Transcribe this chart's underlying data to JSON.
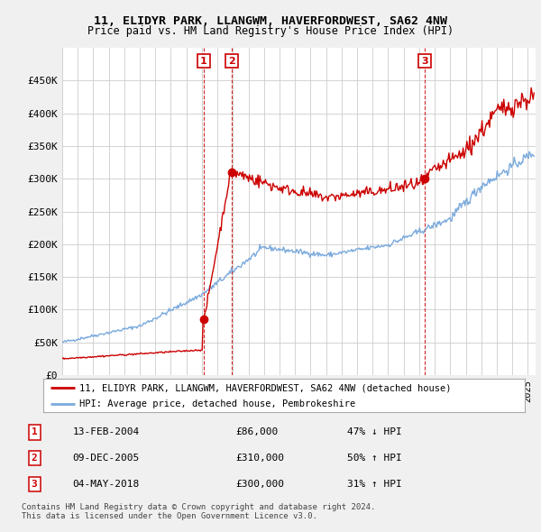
{
  "title": "11, ELIDYR PARK, LLANGWM, HAVERFORDWEST, SA62 4NW",
  "subtitle": "Price paid vs. HM Land Registry's House Price Index (HPI)",
  "xlim_start": 1995.0,
  "xlim_end": 2025.5,
  "ylim": [
    0,
    500000
  ],
  "yticks": [
    0,
    50000,
    100000,
    150000,
    200000,
    250000,
    300000,
    350000,
    400000,
    450000
  ],
  "ytick_labels": [
    "£0",
    "£50K",
    "£100K",
    "£150K",
    "£200K",
    "£250K",
    "£300K",
    "£350K",
    "£400K",
    "£450K"
  ],
  "sale_color": "#cc0000",
  "hpi_color": "#7aaadd",
  "transactions": [
    {
      "num": 1,
      "date_label": "13-FEB-2004",
      "x": 2004.12,
      "price": 86000,
      "pct": "47% ↓ HPI"
    },
    {
      "num": 2,
      "date_label": "09-DEC-2005",
      "x": 2005.92,
      "price": 310000,
      "pct": "50% ↑ HPI"
    },
    {
      "num": 3,
      "date_label": "04-MAY-2018",
      "x": 2018.35,
      "price": 300000,
      "pct": "31% ↑ HPI"
    }
  ],
  "legend_label_sale": "11, ELIDYR PARK, LLANGWM, HAVERFORDWEST, SA62 4NW (detached house)",
  "legend_label_hpi": "HPI: Average price, detached house, Pembrokeshire",
  "footer1": "Contains HM Land Registry data © Crown copyright and database right 2024.",
  "footer2": "This data is licensed under the Open Government Licence v3.0.",
  "background_color": "#f0f0f0",
  "plot_bg_color": "#ffffff"
}
